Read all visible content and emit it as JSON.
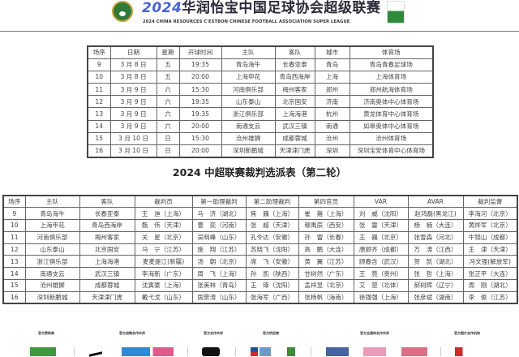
{
  "header": {
    "title_year": "2024",
    "title": "华润怡宝中国足球协会超级联赛",
    "subtitle": "2024 CHINA RESOURCES C'ESTBON CHINESE FOOTBALL ASSOCIATION SUPER LEAGUE",
    "logo": "CFA",
    "sponsor_logo": "怡宝"
  },
  "schedule": {
    "columns": [
      "场序",
      "日期",
      "星期",
      "开球时间",
      "主队",
      "客队",
      "城市",
      "体育场"
    ],
    "rows": [
      [
        "9",
        "3 月 8 日",
        "五",
        "19:35",
        "青岛海牛",
        "长春亚泰",
        "青岛",
        "青岛青春足球场"
      ],
      [
        "10",
        "3 月 8 日",
        "五",
        "20:00",
        "上海申花",
        "青岛西海岸",
        "上海",
        "上海体育场"
      ],
      [
        "11",
        "3 月 9 日",
        "六",
        "15:30",
        "河南俱乐部",
        "梅州客家",
        "郑州",
        "郑州航海体育场"
      ],
      [
        "12",
        "3 月 9 日",
        "六",
        "19:35",
        "山东泰山",
        "北京国安",
        "济南",
        "济南奥体中心体育场"
      ],
      [
        "13",
        "3 月 9 日",
        "六",
        "19:35",
        "浙江俱乐部",
        "上海海港",
        "杭州",
        "黄龙体育中心体育场"
      ],
      [
        "14",
        "3 月 9 日",
        "六",
        "20:00",
        "南通支云",
        "武汉三镇",
        "南通",
        "如皋奥体中心体育场"
      ],
      [
        "15",
        "3 月 10 日",
        "日",
        "15:30",
        "沧州雄狮",
        "成都蓉城",
        "沧州",
        "沧州体育场"
      ],
      [
        "16",
        "3 月 10 日",
        "日",
        "20:00",
        "深圳新鹏城",
        "天津津门虎",
        "深圳",
        "深圳宝安体育中心体育场"
      ]
    ]
  },
  "referees": {
    "title": "2024 中超联赛裁判选派表（第二轮）",
    "columns": [
      "场序",
      "主队",
      "客队",
      "裁判员",
      "第一助理裁判",
      "第二助理裁判",
      "第四官员",
      "VAR",
      "AVAR",
      "裁判监督"
    ],
    "rows": [
      [
        "9",
        "青岛海牛",
        "长春亚泰",
        "王　迪（上海）",
        "马　济（湖北）",
        "焦　巍（上海）",
        "崔　雍（上海）",
        "刘　威（沈阳）",
        "赵鸿磊(黑龙江)",
        "李海河（北京）"
      ],
      [
        "10",
        "上海申花",
        "青岛西海岸",
        "甄　伟（天津）",
        "曹　奕（河南）",
        "张　超（天津）",
        "穆禹辰（西安）",
        "张　雷（天津）",
        "杨　楠（大连）",
        "黄烨军（北京）"
      ],
      [
        "11",
        "河南俱乐部",
        "梅州客家",
        "关　星（北京）",
        "吴明峰（山东）",
        "孔令达（安徽）",
        "孙　雷（长春）",
        "王　巍（北京）",
        "张雪森（河北）",
        "牛锦山（成都）"
      ],
      [
        "12",
        "山东泰山",
        "北京国安",
        "马　宁（江苏）",
        "施　翔（江苏）",
        "苏晓飞（沈阳）",
        "高　鹏（大连）",
        "唐顾齐（成都）",
        "万　涛（江西）",
        "王　津（天津）"
      ],
      [
        "13",
        "浙江俱乐部",
        "上海海港",
        "麦麦提江(新疆)",
        "汤　朝（北京）",
        "席　飞（安徽）",
        "黄　翼（江苏）",
        "顾春含（武汉）",
        "贺　凯（湖北）",
        "冯文强(解放军)"
      ],
      [
        "14",
        "南通支云",
        "武汉三镇",
        "李海新（广东）",
        "周　飞（上海）",
        "孙　凯（陕西）",
        "甘树然（广东）",
        "王　竟（贵州）",
        "张　哲（上海）",
        "张正平（大连）"
      ],
      [
        "15",
        "沧州雄狮",
        "成都蓉城",
        "沈寅豪（上海）",
        "张美林（青岛）",
        "王　琢（沈阳）",
        "孟祥昱（北京）",
        "艾　堃（北体）",
        "郝树辉（辽宁）",
        "周　刚（湖北）"
      ],
      [
        "16",
        "深圳新鹏城",
        "天津津门虎",
        "戴弋戈（山东）",
        "国景涛（山东）",
        "张海军（广西）",
        "张杨帆（海南）",
        "徐强强（上海）",
        "张彦斌（湖南）",
        "李　俊（江苏）"
      ]
    ]
  },
  "footer": {
    "groups": [
      "官方赞助商",
      "官方战略合作伙伴",
      "官方合作伙伴",
      "官方供应商",
      "官方全媒体合作伙伴",
      "官方图片合作机构"
    ],
    "logos": [
      "怡宝",
      "Nike",
      "中国移动 5G 咪咕",
      "EA SPORTS FC",
      "Chevron",
      "中国人保",
      "央视体育",
      "咪咕",
      "腾讯体育",
      "photo"
    ]
  }
}
